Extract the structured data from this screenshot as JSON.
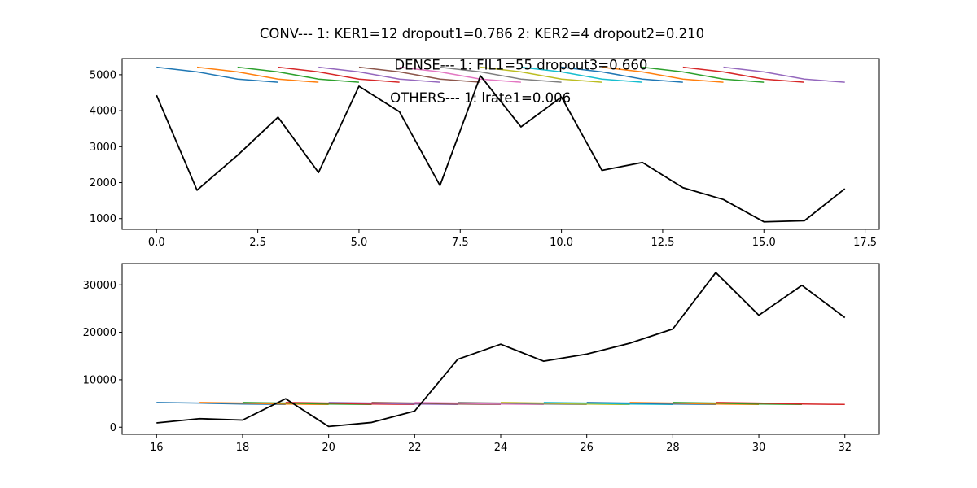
{
  "figure": {
    "suptitle": "CONV--- 1: KER1=12   dropout1=0.786   2: KER2=4   dropout2=0.210"
  },
  "chart_data": [
    {
      "type": "line",
      "panel": "top",
      "xlim": [
        -0.85,
        17.85
      ],
      "ylim": [
        700,
        5450
      ],
      "xticks": [
        0.0,
        2.5,
        5.0,
        7.5,
        10.0,
        12.5,
        15.0,
        17.5
      ],
      "xtick_labels": [
        "0.0",
        "2.5",
        "5.0",
        "7.5",
        "10.0",
        "12.5",
        "15.0",
        "17.5"
      ],
      "yticks": [
        1000,
        2000,
        3000,
        4000,
        5000
      ],
      "ytick_labels": [
        "1000",
        "2000",
        "3000",
        "4000",
        "5000"
      ],
      "annotations": [
        {
          "text": "DENSE--- 1: FIL1=55   dropout3=0.660",
          "x": 9.0,
          "y": 5150
        },
        {
          "text": "OTHERS--- 1: lrate1=0.006",
          "x": 8.0,
          "y": 4230
        }
      ],
      "main_series": {
        "name": "actual",
        "color": "#000000",
        "x": [
          0,
          1,
          2,
          3,
          4,
          5,
          6,
          7,
          8,
          9,
          10,
          11,
          12,
          13,
          14,
          15,
          16,
          17
        ],
        "y": [
          4430,
          1790,
          2760,
          3820,
          2280,
          4680,
          3970,
          1920,
          4970,
          3550,
          4380,
          2340,
          2560,
          1860,
          1530,
          910,
          940,
          1830
        ]
      },
      "forecast_series": [
        {
          "color": "#1f77b4",
          "x": [
            0,
            1,
            2,
            3
          ],
          "y": [
            5210,
            5080,
            4880,
            4790
          ]
        },
        {
          "color": "#ff7f0e",
          "x": [
            1,
            2,
            3,
            4
          ],
          "y": [
            5210,
            5080,
            4880,
            4790
          ]
        },
        {
          "color": "#2ca02c",
          "x": [
            2,
            3,
            4,
            5
          ],
          "y": [
            5210,
            5080,
            4880,
            4790
          ]
        },
        {
          "color": "#d62728",
          "x": [
            3,
            4,
            5,
            6
          ],
          "y": [
            5210,
            5080,
            4880,
            4790
          ]
        },
        {
          "color": "#9467bd",
          "x": [
            4,
            5,
            6,
            7
          ],
          "y": [
            5210,
            5080,
            4880,
            4790
          ]
        },
        {
          "color": "#8c564b",
          "x": [
            5,
            6,
            7,
            8
          ],
          "y": [
            5210,
            5080,
            4880,
            4790
          ]
        },
        {
          "color": "#e377c2",
          "x": [
            6,
            7,
            8,
            9
          ],
          "y": [
            5210,
            5080,
            4880,
            4790
          ]
        },
        {
          "color": "#7f7f7f",
          "x": [
            7,
            8,
            9,
            10
          ],
          "y": [
            5210,
            5080,
            4880,
            4790
          ]
        },
        {
          "color": "#bcbd22",
          "x": [
            8,
            9,
            10,
            11
          ],
          "y": [
            5210,
            5080,
            4880,
            4790
          ]
        },
        {
          "color": "#17becf",
          "x": [
            9,
            10,
            11,
            12
          ],
          "y": [
            5210,
            5080,
            4880,
            4790
          ]
        },
        {
          "color": "#1f77b4",
          "x": [
            10,
            11,
            12,
            13
          ],
          "y": [
            5210,
            5080,
            4880,
            4790
          ]
        },
        {
          "color": "#ff7f0e",
          "x": [
            11,
            12,
            13,
            14
          ],
          "y": [
            5210,
            5080,
            4880,
            4790
          ]
        },
        {
          "color": "#2ca02c",
          "x": [
            12,
            13,
            14,
            15
          ],
          "y": [
            5210,
            5080,
            4880,
            4790
          ]
        },
        {
          "color": "#d62728",
          "x": [
            13,
            14,
            15,
            16
          ],
          "y": [
            5210,
            5080,
            4880,
            4790
          ]
        },
        {
          "color": "#9467bd",
          "x": [
            14,
            15,
            16,
            17
          ],
          "y": [
            5210,
            5080,
            4880,
            4790
          ]
        }
      ]
    },
    {
      "type": "line",
      "panel": "bottom",
      "xlim": [
        15.2,
        32.8
      ],
      "ylim": [
        -1500,
        34500
      ],
      "xticks": [
        16,
        18,
        20,
        22,
        24,
        26,
        28,
        30,
        32
      ],
      "xtick_labels": [
        "16",
        "18",
        "20",
        "22",
        "24",
        "26",
        "28",
        "30",
        "32"
      ],
      "yticks": [
        0,
        10000,
        20000,
        30000
      ],
      "ytick_labels": [
        "0",
        "10000",
        "20000",
        "30000"
      ],
      "annotations": [],
      "main_series": {
        "name": "actual",
        "color": "#000000",
        "x": [
          16,
          17,
          18,
          19,
          20,
          21,
          22,
          23,
          24,
          25,
          26,
          27,
          28,
          29,
          30,
          31,
          32
        ],
        "y": [
          900,
          1800,
          1500,
          6000,
          150,
          1000,
          3400,
          14300,
          17500,
          13900,
          15400,
          17700,
          20700,
          32600,
          23600,
          29900,
          23100
        ]
      },
      "forecast_series": [
        {
          "color": "#1f77b4",
          "x": [
            16,
            17,
            18,
            19
          ],
          "y": [
            5210,
            5080,
            4880,
            4790
          ]
        },
        {
          "color": "#ff7f0e",
          "x": [
            17,
            18,
            19,
            20
          ],
          "y": [
            5210,
            5080,
            4880,
            4790
          ]
        },
        {
          "color": "#2ca02c",
          "x": [
            18,
            19,
            20,
            21
          ],
          "y": [
            5210,
            5080,
            4880,
            4790
          ]
        },
        {
          "color": "#d62728",
          "x": [
            19,
            20,
            21,
            22
          ],
          "y": [
            5210,
            5080,
            4880,
            4790
          ]
        },
        {
          "color": "#9467bd",
          "x": [
            20,
            21,
            22,
            23
          ],
          "y": [
            5210,
            5080,
            4880,
            4790
          ]
        },
        {
          "color": "#8c564b",
          "x": [
            21,
            22,
            23,
            24
          ],
          "y": [
            5210,
            5080,
            4880,
            4790
          ]
        },
        {
          "color": "#e377c2",
          "x": [
            22,
            23,
            24,
            25
          ],
          "y": [
            5210,
            5080,
            4880,
            4790
          ]
        },
        {
          "color": "#7f7f7f",
          "x": [
            23,
            24,
            25,
            26
          ],
          "y": [
            5210,
            5080,
            4880,
            4790
          ]
        },
        {
          "color": "#bcbd22",
          "x": [
            24,
            25,
            26,
            27
          ],
          "y": [
            5210,
            5080,
            4880,
            4790
          ]
        },
        {
          "color": "#17becf",
          "x": [
            25,
            26,
            27,
            28
          ],
          "y": [
            5210,
            5080,
            4880,
            4790
          ]
        },
        {
          "color": "#1f77b4",
          "x": [
            26,
            27,
            28,
            29
          ],
          "y": [
            5210,
            5080,
            4880,
            4790
          ]
        },
        {
          "color": "#ff7f0e",
          "x": [
            27,
            28,
            29,
            30
          ],
          "y": [
            5210,
            5080,
            4880,
            4790
          ]
        },
        {
          "color": "#2ca02c",
          "x": [
            28,
            29,
            30,
            31
          ],
          "y": [
            5210,
            5080,
            4880,
            4790
          ]
        },
        {
          "color": "#d62728",
          "x": [
            29,
            30,
            31,
            32
          ],
          "y": [
            5210,
            5080,
            4880,
            4790
          ]
        }
      ]
    }
  ]
}
